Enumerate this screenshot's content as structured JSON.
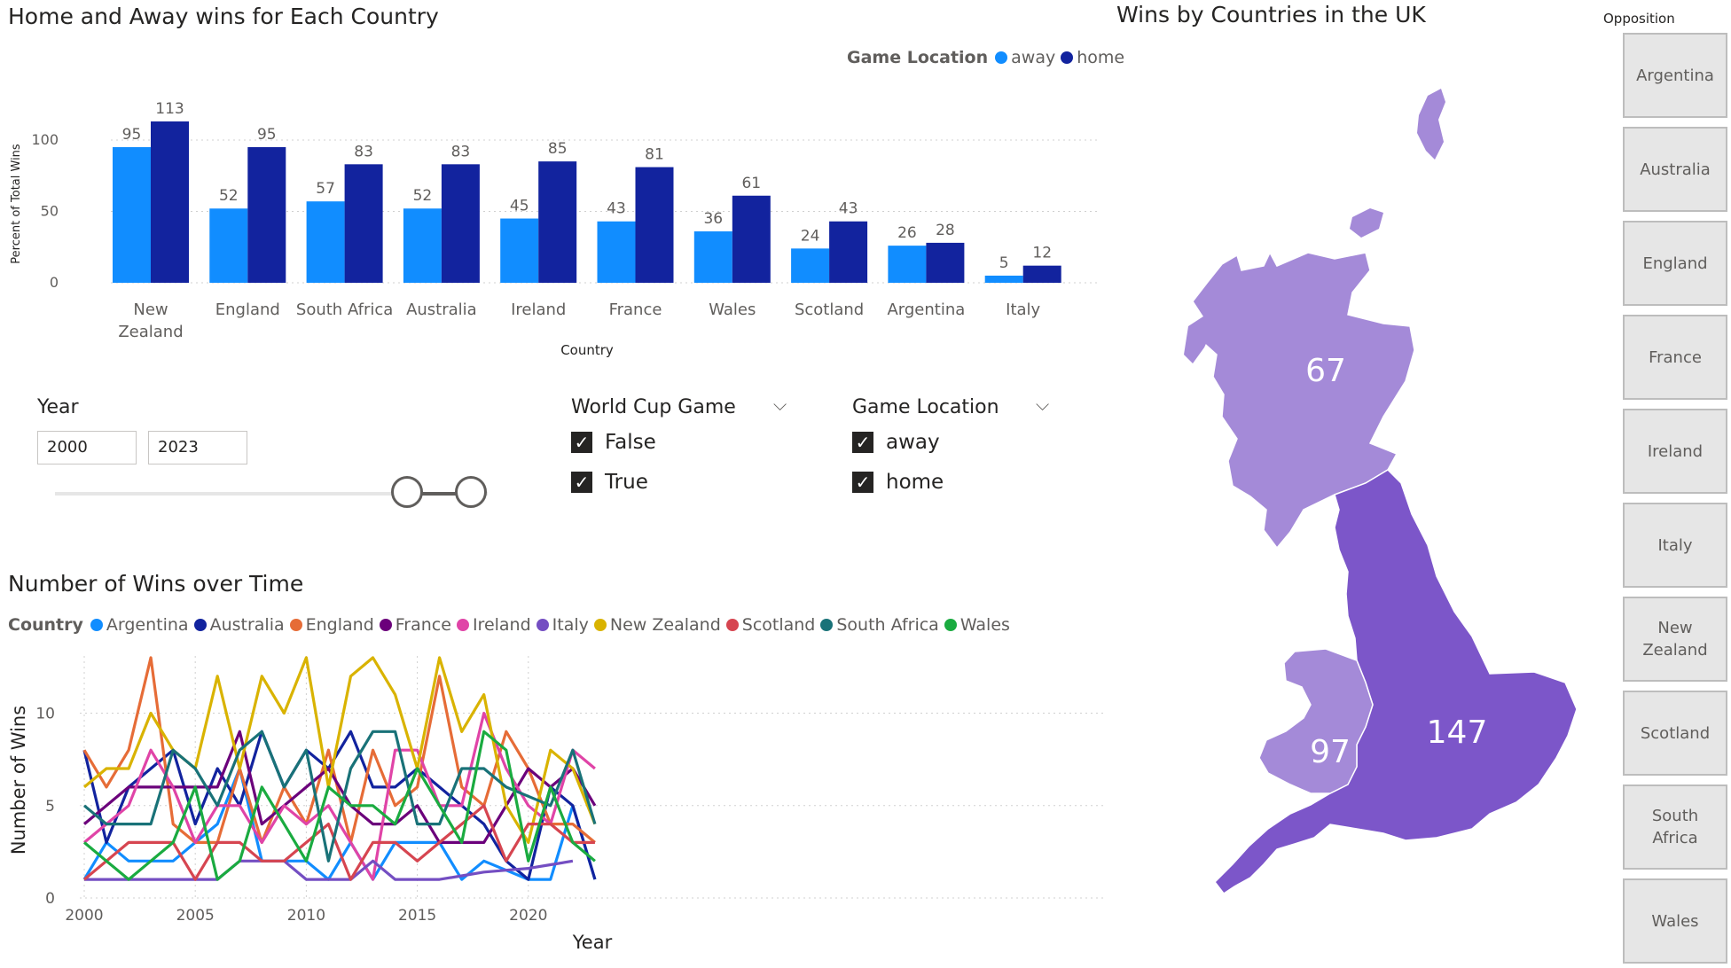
{
  "bar_section": {
    "title": "Home and Away wins for Each Country",
    "legend_title": "Game Location",
    "legend": [
      {
        "label": "away",
        "color": "#118dff"
      },
      {
        "label": "home",
        "color": "#12239e"
      }
    ]
  },
  "slicers": {
    "year": {
      "title": "Year",
      "from": "2000",
      "to": "2023"
    },
    "world_cup": {
      "title": "World Cup Game",
      "options": [
        "False",
        "True"
      ]
    },
    "game_location": {
      "title": "Game Location",
      "options": [
        "away",
        "home"
      ]
    }
  },
  "line_section": {
    "title": "Number of Wins over Time",
    "legend_title": "Country"
  },
  "map_section": {
    "title": "Wins by Countries in the UK",
    "regions": [
      {
        "name": "Scotland",
        "value": "67",
        "color": "#a48ad8"
      },
      {
        "name": "Wales",
        "value": "97",
        "color": "#a48ad8"
      },
      {
        "name": "England",
        "value": "147",
        "color": "#7c56c9"
      }
    ]
  },
  "opposition": {
    "title": "Opposition",
    "items": [
      "Argentina",
      "Australia",
      "England",
      "France",
      "Ireland",
      "Italy",
      "New Zealand",
      "Scotland",
      "South Africa",
      "Wales"
    ]
  },
  "chart_data": [
    {
      "type": "bar",
      "title": "Home and Away wins for Each Country",
      "xlabel": "Country",
      "ylabel": "Percent of Total Wins",
      "ylim": [
        0,
        113
      ],
      "yticks": [
        0,
        50,
        100
      ],
      "categories": [
        "New Zealand",
        "England",
        "South Africa",
        "Australia",
        "Ireland",
        "France",
        "Wales",
        "Scotland",
        "Argentina",
        "Italy"
      ],
      "series": [
        {
          "name": "away",
          "color": "#118dff",
          "values": [
            95,
            52,
            57,
            52,
            45,
            43,
            36,
            24,
            26,
            5
          ]
        },
        {
          "name": "home",
          "color": "#12239e",
          "values": [
            113,
            95,
            83,
            83,
            85,
            81,
            61,
            43,
            28,
            12
          ]
        }
      ]
    },
    {
      "type": "line",
      "title": "Number of Wins over Time",
      "xlabel": "Year",
      "ylabel": "Number of Wins",
      "xlim": [
        2000,
        2023
      ],
      "ylim": [
        0,
        13
      ],
      "xticks": [
        2000,
        2005,
        2010,
        2015,
        2020
      ],
      "yticks": [
        0,
        5,
        10
      ],
      "x": [
        2000,
        2001,
        2002,
        2003,
        2004,
        2005,
        2006,
        2007,
        2008,
        2009,
        2010,
        2011,
        2012,
        2013,
        2014,
        2015,
        2016,
        2017,
        2018,
        2019,
        2020,
        2021,
        2022,
        2023
      ],
      "series": [
        {
          "name": "Argentina",
          "color": "#118dff",
          "values": [
            1,
            3,
            2,
            2,
            2,
            3,
            4,
            7,
            2,
            2,
            2,
            1,
            3,
            1,
            3,
            3,
            3,
            1,
            2,
            1.5,
            1,
            1,
            5,
            1
          ]
        },
        {
          "name": "Australia",
          "color": "#12239e",
          "values": [
            8,
            3,
            6,
            7,
            8,
            4,
            7,
            5,
            9,
            6,
            8,
            7,
            9,
            6,
            6,
            7,
            6,
            5,
            4,
            2,
            1,
            6,
            5,
            1
          ]
        },
        {
          "name": "England",
          "color": "#e66c37",
          "values": [
            8,
            6,
            8,
            13,
            4,
            3,
            3,
            7,
            3,
            6,
            4,
            8,
            3,
            8,
            5,
            6,
            12,
            6,
            5,
            9,
            7,
            4,
            4,
            3
          ]
        },
        {
          "name": "France",
          "color": "#6b007b",
          "values": [
            4,
            5,
            6,
            6,
            6,
            6,
            6,
            9,
            4,
            5,
            6,
            7,
            5,
            4,
            4,
            5,
            3,
            3,
            3,
            5,
            7,
            6,
            7,
            5
          ]
        },
        {
          "name": "Ireland",
          "color": "#e044a7",
          "values": [
            3,
            4,
            5,
            8,
            6,
            3,
            5,
            5,
            3,
            5,
            4,
            5,
            3,
            1,
            8,
            8,
            5,
            5,
            10,
            7,
            5,
            4,
            8,
            7
          ]
        },
        {
          "name": "Italy",
          "color": "#744ec2",
          "values": [
            1,
            1,
            1,
            1,
            1,
            1,
            1,
            2,
            2,
            2,
            1,
            1,
            1,
            2,
            1,
            1,
            1,
            1.2,
            1.4,
            1.5,
            1.6,
            1.8,
            2,
            null
          ]
        },
        {
          "name": "New Zealand",
          "color": "#d9b300",
          "values": [
            6,
            7,
            7,
            10,
            8,
            7,
            12,
            7,
            12,
            10,
            13,
            6,
            12,
            13,
            11,
            7,
            13,
            9,
            11,
            5,
            3,
            8,
            7,
            4
          ]
        },
        {
          "name": "Scotland",
          "color": "#d64550",
          "values": [
            1,
            2,
            3,
            3,
            3,
            1,
            3,
            3,
            2,
            2,
            3,
            4,
            1,
            3,
            3,
            2,
            3,
            4,
            5,
            2,
            4,
            4,
            3,
            3
          ]
        },
        {
          "name": "South Africa",
          "color": "#197278",
          "values": [
            5,
            4,
            4,
            4,
            8,
            7,
            5,
            8,
            9,
            6,
            8,
            2,
            7,
            9,
            9,
            4,
            4,
            7,
            7,
            6,
            5.5,
            5,
            8,
            4
          ]
        },
        {
          "name": "Wales",
          "color": "#1aab40",
          "values": [
            3,
            2,
            1,
            2,
            3,
            6,
            1,
            2,
            6,
            4,
            2,
            6,
            5,
            5,
            4,
            7,
            5,
            3,
            9,
            8,
            2,
            6,
            3,
            2
          ]
        }
      ]
    },
    {
      "type": "map",
      "title": "Wins by Countries in the UK",
      "categories": [
        "Scotland",
        "Wales",
        "England"
      ],
      "values": [
        67,
        97,
        147
      ]
    }
  ]
}
